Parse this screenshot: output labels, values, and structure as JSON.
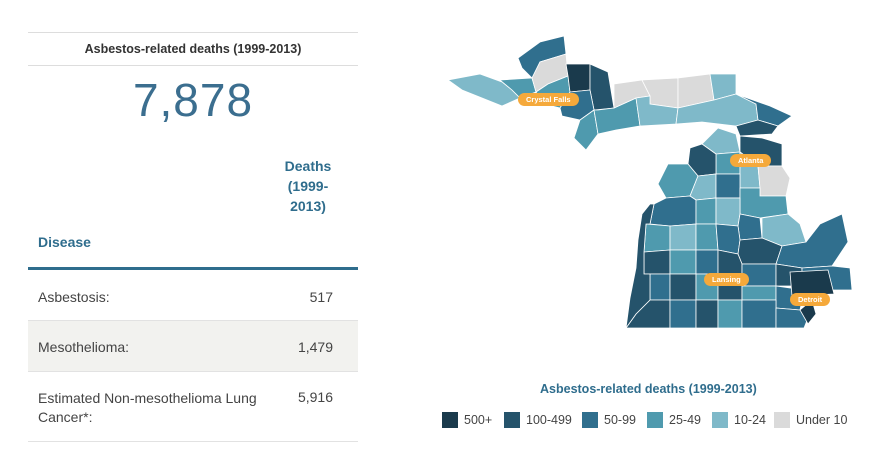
{
  "stat": {
    "title": "Asbestos-related deaths (1999-2013)",
    "value": "7,878"
  },
  "table": {
    "header_disease": "Disease",
    "header_deaths_line1": "Deaths",
    "header_deaths_line2": "(1999-",
    "header_deaths_line3": "2013)",
    "rows": [
      {
        "disease": "Asbestosis:",
        "deaths": "517"
      },
      {
        "disease": "Mesothelioma:",
        "deaths": "1,479"
      },
      {
        "disease": "Estimated Non-mesothelioma Lung Cancer*:",
        "deaths": "5,916"
      }
    ]
  },
  "map": {
    "cities": [
      "Crystal Falls",
      "Atlanta",
      "Lansing",
      "Detroit"
    ],
    "city_color": "#f5a93b"
  },
  "legend": {
    "title": "Asbestos-related deaths (1999-2013)",
    "items": [
      {
        "label": "500+",
        "color": "#1a3a4c"
      },
      {
        "label": "100-499",
        "color": "#25536b"
      },
      {
        "label": "50-99",
        "color": "#306f8e"
      },
      {
        "label": "25-49",
        "color": "#4f9aae"
      },
      {
        "label": "10-24",
        "color": "#7fb9c9"
      },
      {
        "label": "Under 10",
        "color": "#dadada"
      }
    ]
  }
}
